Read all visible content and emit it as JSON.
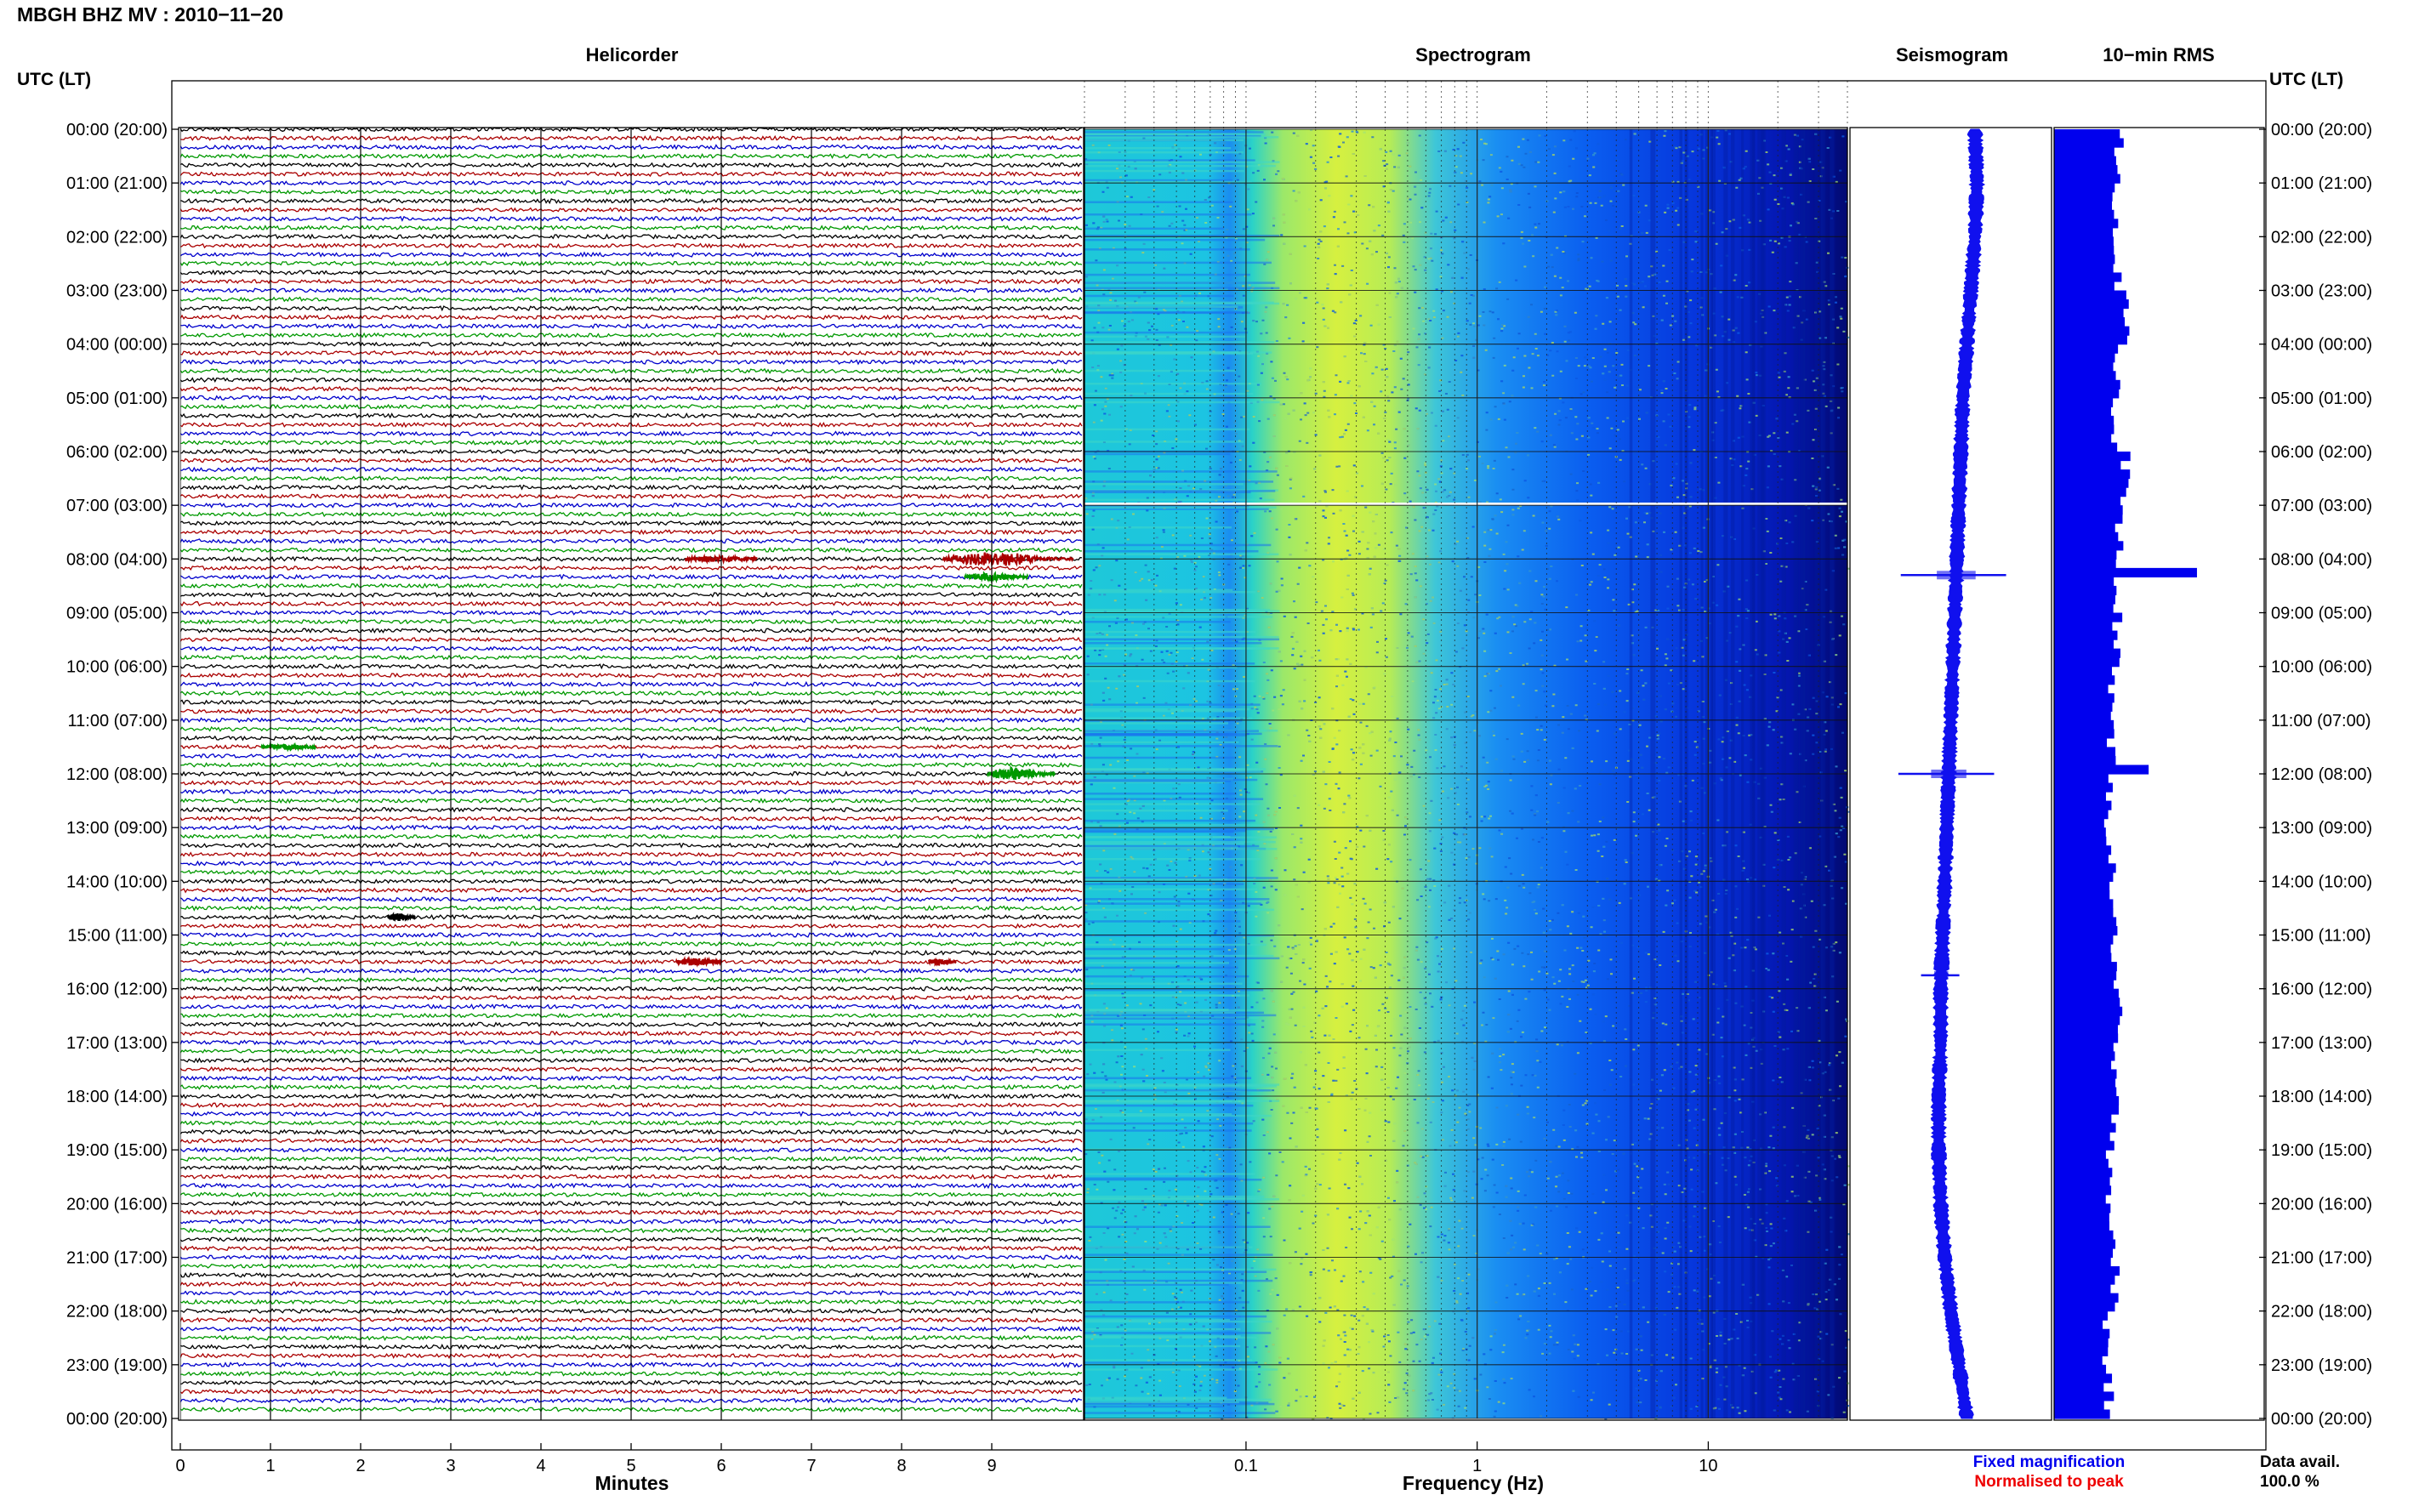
{
  "header": {
    "title": "MBGH BHZ MV : 2010−11−20"
  },
  "chart_data": [
    {
      "type": "helicorder",
      "title": "Helicorder",
      "xlabel": "Minutes",
      "ylabel": "UTC (LT)",
      "xlim": [
        0,
        10
      ],
      "x_ticks": [
        "0",
        "1",
        "2",
        "3",
        "4",
        "5",
        "6",
        "7",
        "8",
        "9"
      ],
      "y_tick_labels": [
        "00:00 (20:00)",
        "01:00 (21:00)",
        "02:00 (22:00)",
        "03:00 (23:00)",
        "04:00 (00:00)",
        "05:00 (01:00)",
        "06:00 (02:00)",
        "07:00 (03:00)",
        "08:00 (04:00)",
        "09:00 (05:00)",
        "10:00 (06:00)",
        "11:00 (07:00)",
        "12:00 (08:00)",
        "13:00 (09:00)",
        "14:00 (10:00)",
        "15:00 (11:00)",
        "16:00 (12:00)",
        "17:00 (13:00)",
        "18:00 (14:00)",
        "19:00 (15:00)",
        "20:00 (16:00)",
        "21:00 (17:00)",
        "22:00 (18:00)",
        "23:00 (19:00)",
        "00:00 (20:00)"
      ],
      "traces_per_hour": 6,
      "trace_colors": [
        "#000000",
        "#aa0000",
        "#0000cc",
        "#009900"
      ],
      "events": [
        {
          "hour": 8.0,
          "start_min": 8.45,
          "end_min": 9.9,
          "amplitude": 7,
          "color": "#aa0000"
        },
        {
          "hour": 8.0,
          "start_min": 5.6,
          "end_min": 6.4,
          "amplitude": 2,
          "color": "#aa0000"
        },
        {
          "hour": 8.333,
          "start_min": 8.7,
          "end_min": 9.4,
          "amplitude": 3,
          "color": "#009900"
        },
        {
          "hour": 12.0,
          "start_min": 8.95,
          "end_min": 9.7,
          "amplitude": 6,
          "color": "#009900"
        },
        {
          "hour": 11.5,
          "start_min": 0.9,
          "end_min": 1.5,
          "amplitude": 2,
          "color": "#009900"
        },
        {
          "hour": 14.667,
          "start_min": 2.3,
          "end_min": 2.6,
          "amplitude": 3,
          "color": "#000000"
        },
        {
          "hour": 15.5,
          "start_min": 5.5,
          "end_min": 6.0,
          "amplitude": 3,
          "color": "#aa0000"
        },
        {
          "hour": 15.5,
          "start_min": 8.3,
          "end_min": 8.6,
          "amplitude": 2,
          "color": "#aa0000"
        }
      ]
    },
    {
      "type": "heatmap",
      "title": "Spectrogram",
      "xlabel": "Frequency (Hz)",
      "x_scale": "log",
      "xlim": [
        0.02,
        40
      ],
      "x_ticks": [
        0.1,
        1,
        10
      ],
      "x_tick_labels": [
        "0.1",
        "1",
        "10"
      ],
      "ylim_hours": [
        0,
        24
      ],
      "colormap": [
        "#00006a",
        "#0010d8",
        "#0a60f5",
        "#1aa0f2",
        "#1ecfd6",
        "#5ee29e",
        "#cdef4a",
        "#f6f21c"
      ],
      "notes": "Energy peaks (yellow) near 0.2-0.5 Hz, decreasing to dark blue above 10 Hz; white gap at 07:00."
    },
    {
      "type": "line",
      "title": "Seismogram",
      "ylim_hours": [
        0,
        24
      ],
      "profile_offset": [
        0.62,
        0.63,
        0.62,
        0.6,
        0.58,
        0.56,
        0.55,
        0.54,
        0.53,
        0.52,
        0.51,
        0.5,
        0.49,
        0.48,
        0.47,
        0.46,
        0.45,
        0.45,
        0.44,
        0.44,
        0.45,
        0.47,
        0.5,
        0.54,
        0.58
      ],
      "spikes": [
        {
          "hour": 8.3,
          "width": 0.55
        },
        {
          "hour": 12.0,
          "width": 0.5
        },
        {
          "hour": 15.75,
          "width": 0.2
        }
      ],
      "legend": [
        {
          "label": "Fixed magnification",
          "color": "#0000ee"
        },
        {
          "label": "Normalised to peak",
          "color": "#ee0000"
        }
      ]
    },
    {
      "type": "bar",
      "title": "10−min RMS",
      "orientation": "horizontal",
      "bars_per_hour": 6,
      "ylim_hours": [
        0,
        24
      ],
      "xlim": [
        0,
        1
      ],
      "hourly_rms": [
        0.31,
        0.3,
        0.3,
        0.35,
        0.3,
        0.28,
        0.34,
        0.31,
        0.29,
        0.3,
        0.28,
        0.27,
        0.26,
        0.27,
        0.28,
        0.29,
        0.3,
        0.28,
        0.29,
        0.27,
        0.27,
        0.29,
        0.25,
        0.26
      ],
      "peaks": [
        {
          "hour": 8.167,
          "value": 0.68
        },
        {
          "hour": 11.833,
          "value": 0.45
        }
      ],
      "color": "#0000ee"
    }
  ],
  "right_axis": {
    "label": "UTC (LT)"
  },
  "data_availability": {
    "label": "Data avail.",
    "value": "100.0 %"
  }
}
